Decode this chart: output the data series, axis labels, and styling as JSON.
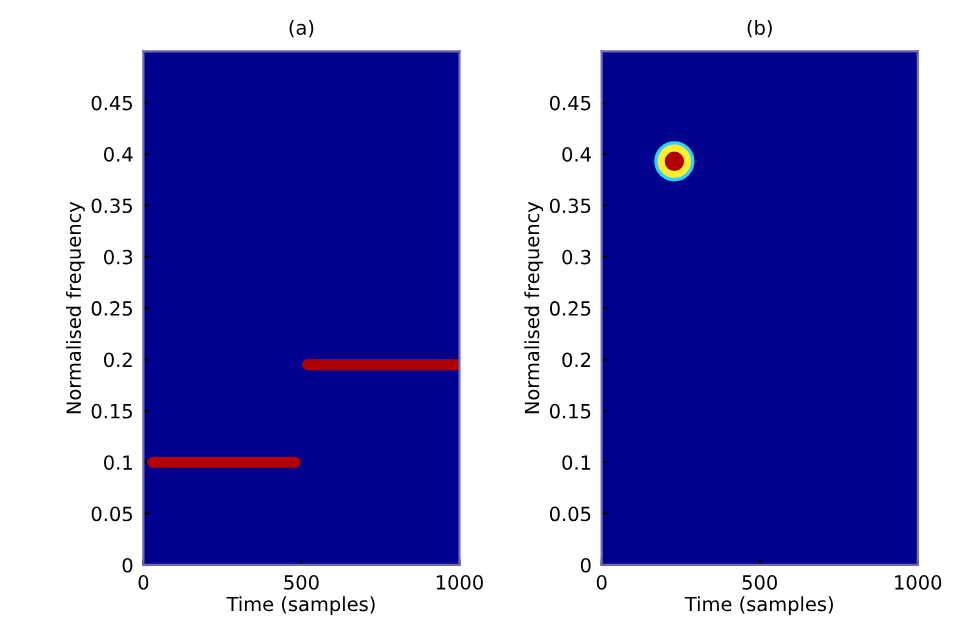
{
  "chart_data": [
    {
      "type": "line",
      "title": "(a)",
      "xlabel": "Time (samples)",
      "ylabel": "Normalised frequency",
      "xlim": [
        0,
        1000
      ],
      "xticks": [
        0,
        500,
        1000
      ],
      "ylim": [
        0,
        0.5
      ],
      "yticks": [
        0,
        0.05,
        0.1,
        0.15,
        0.2,
        0.25,
        0.3,
        0.35,
        0.4,
        0.45
      ],
      "grid": false,
      "legend": false,
      "series": [
        {
          "color": "#b00000",
          "x": [
            30,
            480
          ],
          "values": [
            0.1,
            0.1
          ]
        },
        {
          "color": "#b00000",
          "x": [
            520,
            990
          ],
          "values": [
            0.195,
            0.195
          ]
        }
      ]
    },
    {
      "type": "scatter",
      "title": "(b)",
      "xlabel": "Time (samples)",
      "ylabel": "Normalised frequency",
      "xlim": [
        0,
        1000
      ],
      "xticks": [
        0,
        500,
        1000
      ],
      "ylim": [
        0,
        0.5
      ],
      "yticks": [
        0,
        0.05,
        0.1,
        0.15,
        0.2,
        0.25,
        0.3,
        0.35,
        0.4,
        0.45
      ],
      "grid": false,
      "legend": false,
      "series": [
        {
          "color": "#b00000",
          "x": [
            230
          ],
          "values": [
            0.393
          ]
        }
      ]
    }
  ]
}
